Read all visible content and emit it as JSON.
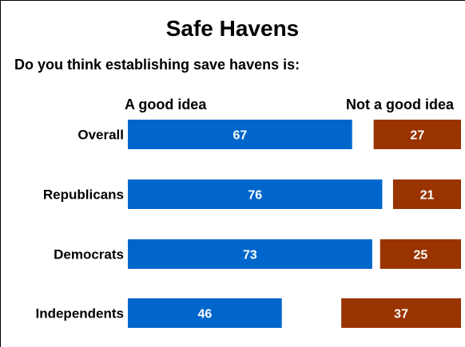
{
  "chart_data": {
    "type": "bar",
    "title": "Safe Havens",
    "subtitle": "Do you think establishing save havens is:",
    "categories": [
      "Overall",
      "Republicans",
      "Democrats",
      "Independents"
    ],
    "series": [
      {
        "name": "A good idea",
        "values": [
          67,
          76,
          73,
          46
        ],
        "color": "#0066CC"
      },
      {
        "name": "Not a good idea",
        "values": [
          27,
          21,
          25,
          37
        ],
        "color": "#993300"
      }
    ]
  }
}
